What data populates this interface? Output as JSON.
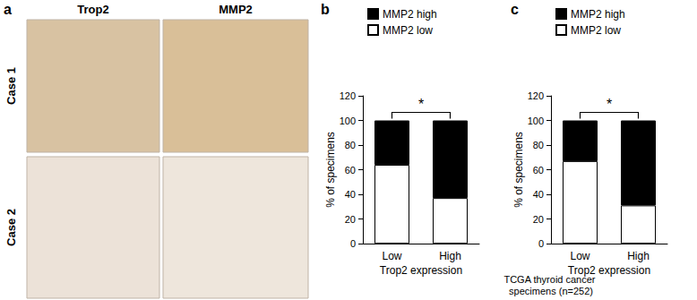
{
  "panel_a": {
    "label": "a",
    "type": "image_grid",
    "columns": [
      "Trop2",
      "MMP2"
    ],
    "rows": [
      "Case 1",
      "Case 2"
    ]
  },
  "chart_data": [
    {
      "panel": "b",
      "type": "bar",
      "stacked": true,
      "grid": false,
      "legend": "top",
      "categories": [
        "Low",
        "High"
      ],
      "x_label": "Trop2 expression",
      "y_label": "% of specimens",
      "ylim": [
        0,
        120
      ],
      "yticks": [
        0,
        20,
        40,
        60,
        80,
        100,
        120
      ],
      "series": [
        {
          "name": "MMP2 low",
          "color": "#ffffff",
          "values": [
            64,
            37
          ]
        },
        {
          "name": "MMP2 high",
          "color": "#000000",
          "values": [
            36,
            63
          ]
        }
      ],
      "annotation": "*"
    },
    {
      "panel": "c",
      "type": "bar",
      "stacked": true,
      "grid": false,
      "legend": "top",
      "categories": [
        "Low",
        "High"
      ],
      "x_label": "Trop2 expression",
      "y_label": "% of specimens",
      "subtitle": "TCGA thyroid cancer specimens (n=252)",
      "ylim": [
        0,
        120
      ],
      "yticks": [
        0,
        20,
        40,
        60,
        80,
        100,
        120
      ],
      "series": [
        {
          "name": "MMP2 low",
          "color": "#ffffff",
          "values": [
            67,
            31
          ]
        },
        {
          "name": "MMP2 high",
          "color": "#000000",
          "values": [
            33,
            69
          ]
        }
      ],
      "annotation": "*"
    }
  ]
}
